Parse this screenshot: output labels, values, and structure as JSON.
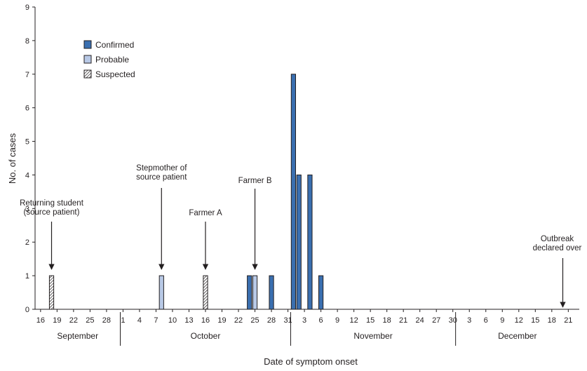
{
  "chart_data": {
    "type": "bar",
    "xlabel": "Date of symptom onset",
    "ylabel": "No. of cases",
    "ylim": [
      0,
      9
    ],
    "y_ticks": [
      "0",
      "1",
      "2",
      "3",
      "4",
      "5",
      "6",
      "7",
      "8",
      "9"
    ],
    "x_start": "2014-09-15",
    "x_end": "2014-12-23",
    "x_ticks": [
      {
        "date": "2014-09-16",
        "label": "16"
      },
      {
        "date": "2014-09-19",
        "label": "19"
      },
      {
        "date": "2014-09-22",
        "label": "22"
      },
      {
        "date": "2014-09-25",
        "label": "25"
      },
      {
        "date": "2014-09-28",
        "label": "28"
      },
      {
        "date": "2014-10-01",
        "label": "1"
      },
      {
        "date": "2014-10-04",
        "label": "4"
      },
      {
        "date": "2014-10-07",
        "label": "7"
      },
      {
        "date": "2014-10-10",
        "label": "10"
      },
      {
        "date": "2014-10-13",
        "label": "13"
      },
      {
        "date": "2014-10-16",
        "label": "16"
      },
      {
        "date": "2014-10-19",
        "label": "19"
      },
      {
        "date": "2014-10-22",
        "label": "22"
      },
      {
        "date": "2014-10-25",
        "label": "25"
      },
      {
        "date": "2014-10-28",
        "label": "28"
      },
      {
        "date": "2014-10-31",
        "label": "31"
      },
      {
        "date": "2014-11-03",
        "label": "3"
      },
      {
        "date": "2014-11-06",
        "label": "6"
      },
      {
        "date": "2014-11-09",
        "label": "9"
      },
      {
        "date": "2014-11-12",
        "label": "12"
      },
      {
        "date": "2014-11-15",
        "label": "15"
      },
      {
        "date": "2014-11-18",
        "label": "18"
      },
      {
        "date": "2014-11-21",
        "label": "21"
      },
      {
        "date": "2014-11-24",
        "label": "24"
      },
      {
        "date": "2014-11-27",
        "label": "27"
      },
      {
        "date": "2014-11-30",
        "label": "30"
      },
      {
        "date": "2014-12-03",
        "label": "3"
      },
      {
        "date": "2014-12-06",
        "label": "6"
      },
      {
        "date": "2014-12-09",
        "label": "9"
      },
      {
        "date": "2014-12-12",
        "label": "12"
      },
      {
        "date": "2014-12-15",
        "label": "15"
      },
      {
        "date": "2014-12-18",
        "label": "18"
      },
      {
        "date": "2014-12-21",
        "label": "21"
      }
    ],
    "months": [
      {
        "label": "September",
        "start": "2014-09-15",
        "end": "2014-09-30"
      },
      {
        "label": "October",
        "start": "2014-10-01",
        "end": "2014-10-31"
      },
      {
        "label": "November",
        "start": "2014-11-01",
        "end": "2014-11-30"
      },
      {
        "label": "December",
        "start": "2014-12-01",
        "end": "2014-12-23"
      }
    ],
    "series": [
      {
        "name": "Confirmed",
        "color": "#3a6fb0",
        "pattern": "solid",
        "points": [
          {
            "date": "2014-10-24",
            "value": 1
          },
          {
            "date": "2014-10-28",
            "value": 1
          },
          {
            "date": "2014-11-01",
            "value": 7
          },
          {
            "date": "2014-11-02",
            "value": 4
          },
          {
            "date": "2014-11-04",
            "value": 4
          },
          {
            "date": "2014-11-06",
            "value": 1
          }
        ]
      },
      {
        "name": "Probable",
        "color": "#b8c9e6",
        "pattern": "solid",
        "points": [
          {
            "date": "2014-10-08",
            "value": 1
          },
          {
            "date": "2014-10-25",
            "value": 1
          }
        ]
      },
      {
        "name": "Suspected",
        "color": "#ffffff",
        "pattern": "hatched",
        "points": [
          {
            "date": "2014-09-18",
            "value": 1
          },
          {
            "date": "2014-10-16",
            "value": 1
          }
        ]
      }
    ],
    "annotations": [
      {
        "lines": [
          "Returning student",
          "(source patient)"
        ],
        "date": "2014-09-18"
      },
      {
        "lines": [
          "Stepmother of",
          "source patient"
        ],
        "date": "2014-10-08"
      },
      {
        "lines": [
          "Farmer A"
        ],
        "date": "2014-10-16"
      },
      {
        "lines": [
          "Farmer B"
        ],
        "date": "2014-10-25"
      },
      {
        "lines": [
          "Outbreak",
          "declared over"
        ],
        "date": "2014-12-20"
      }
    ],
    "legend": {
      "position": "top-left",
      "items": [
        "Confirmed",
        "Probable",
        "Suspected"
      ]
    },
    "grid": false
  }
}
